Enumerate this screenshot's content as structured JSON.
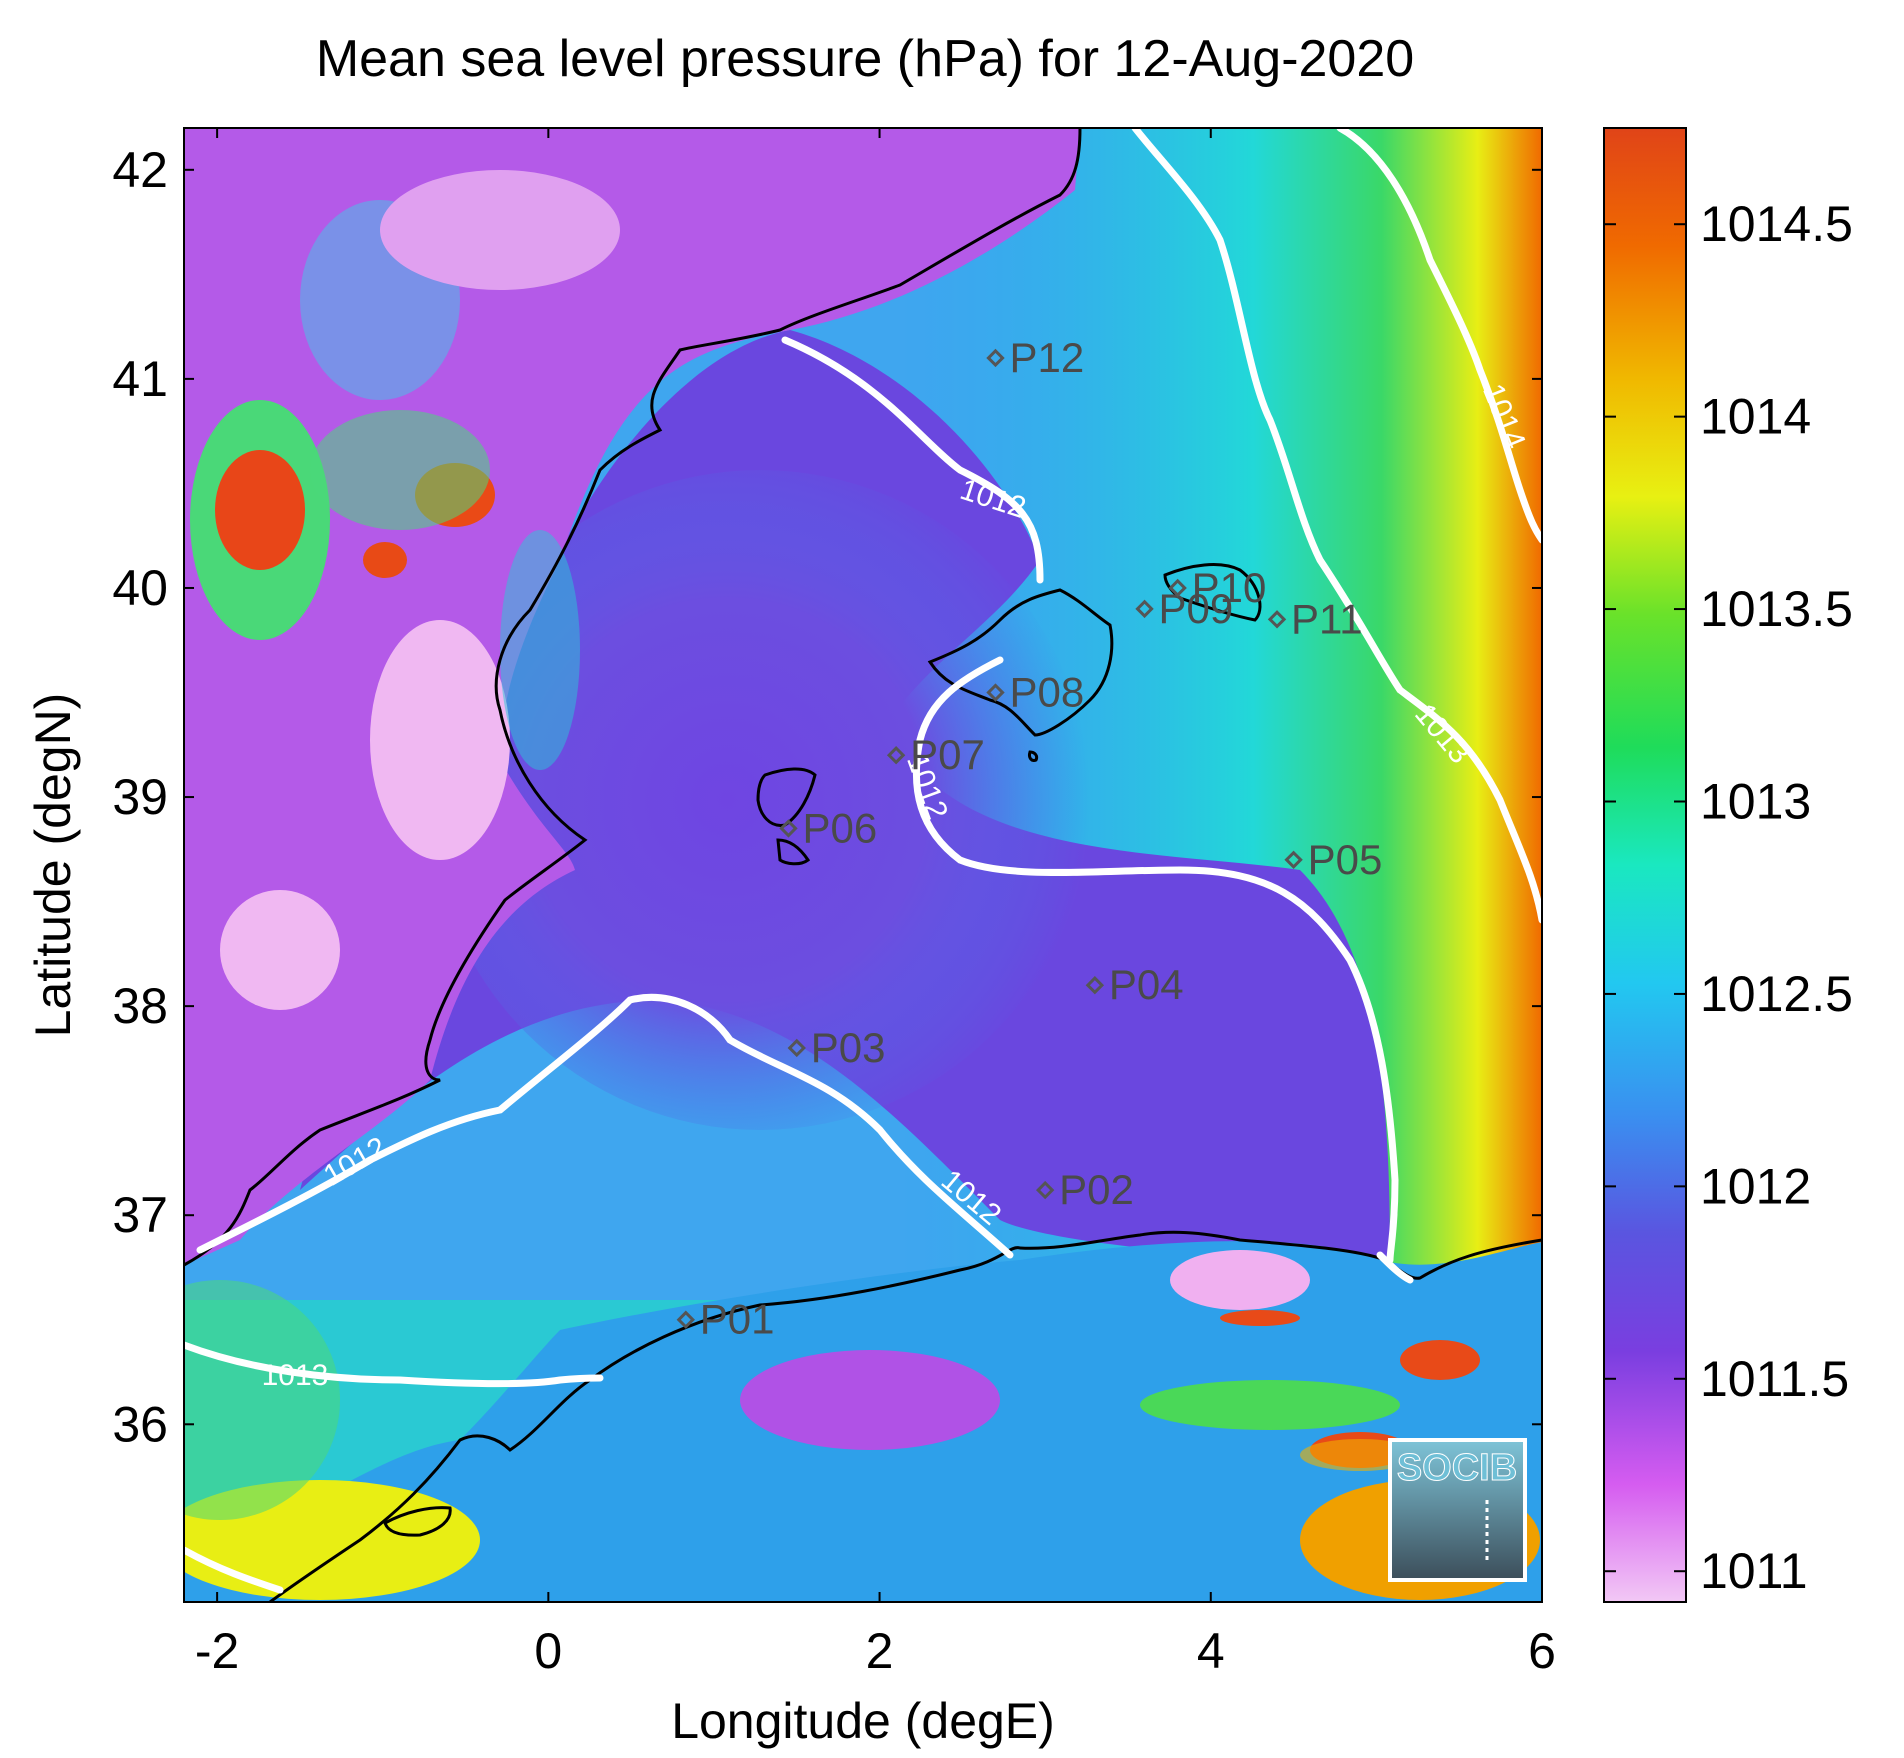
{
  "title": "Mean sea level pressure (hPa) for 12-Aug-2020",
  "xlabel": "Longitude (degE)",
  "ylabel": "Latitude (degN)",
  "logo_text": "SOCIB",
  "map": {
    "lon_range": [
      -2.2,
      6.0
    ],
    "lat_range": [
      35.15,
      42.2
    ],
    "x_ticks": [
      "-2",
      "0",
      "2",
      "4",
      "6"
    ],
    "y_ticks": [
      "36",
      "37",
      "38",
      "39",
      "40",
      "41",
      "42"
    ]
  },
  "colorbar": {
    "range": [
      1010.92,
      1014.75
    ],
    "ticks": [
      "1011",
      "1011.5",
      "1012",
      "1012.5",
      "1013",
      "1013.5",
      "1014",
      "1014.5"
    ],
    "colors": [
      "#f2c8f5",
      "#d55cf0",
      "#7a3ee0",
      "#5a55e0",
      "#3a8ff0",
      "#22c8f0",
      "#1ae8c0",
      "#1fdc5a",
      "#6ae22a",
      "#e8f012",
      "#f0b800",
      "#f06a00",
      "#e04418"
    ]
  },
  "contour_labels": [
    "1012",
    "1012",
    "1012",
    "1012",
    "1013",
    "1013",
    "1014"
  ],
  "stations": [
    {
      "id": "P01",
      "lon": 0.83,
      "lat": 36.5
    },
    {
      "id": "P02",
      "lon": 3.0,
      "lat": 37.12
    },
    {
      "id": "P03",
      "lon": 1.5,
      "lat": 37.8
    },
    {
      "id": "P04",
      "lon": 3.3,
      "lat": 38.1
    },
    {
      "id": "P05",
      "lon": 4.5,
      "lat": 38.7
    },
    {
      "id": "P06",
      "lon": 1.45,
      "lat": 38.85
    },
    {
      "id": "P07",
      "lon": 2.1,
      "lat": 39.2
    },
    {
      "id": "P08",
      "lon": 2.7,
      "lat": 39.5
    },
    {
      "id": "P09",
      "lon": 3.6,
      "lat": 39.9
    },
    {
      "id": "P10",
      "lon": 3.8,
      "lat": 40.0
    },
    {
      "id": "P11",
      "lon": 4.4,
      "lat": 39.85
    },
    {
      "id": "P12",
      "lon": 2.7,
      "lat": 41.1
    }
  ]
}
